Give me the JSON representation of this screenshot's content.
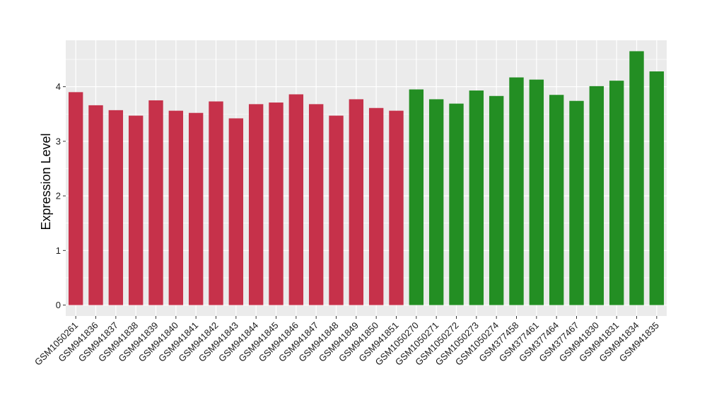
{
  "chart_data": {
    "type": "bar",
    "title": "",
    "xlabel": "",
    "ylabel": "Expression Level",
    "ylim": [
      -0.2,
      4.85
    ],
    "yticks": [
      0,
      1,
      2,
      3,
      4
    ],
    "grid": true,
    "legend": "none",
    "colors": {
      "group_a": "#C6314A",
      "group_b": "#238E23",
      "panel": "#EBEBEB",
      "grid": "#FFFFFF"
    },
    "categories": [
      "GSM1050261",
      "GSM941836",
      "GSM941837",
      "GSM941838",
      "GSM941839",
      "GSM941840",
      "GSM941841",
      "GSM941842",
      "GSM941843",
      "GSM941844",
      "GSM941845",
      "GSM941846",
      "GSM941847",
      "GSM941848",
      "GSM941849",
      "GSM941850",
      "GSM941851",
      "GSM1050270",
      "GSM1050271",
      "GSM1050272",
      "GSM1050273",
      "GSM1050274",
      "GSM377458",
      "GSM377461",
      "GSM377464",
      "GSM377467",
      "GSM941830",
      "GSM941831",
      "GSM941834",
      "GSM941835"
    ],
    "values": [
      3.9,
      3.66,
      3.57,
      3.47,
      3.75,
      3.56,
      3.52,
      3.73,
      3.42,
      3.68,
      3.71,
      3.86,
      3.68,
      3.47,
      3.77,
      3.61,
      3.56,
      3.95,
      3.77,
      3.69,
      3.93,
      3.83,
      4.17,
      4.13,
      3.85,
      3.74,
      4.01,
      4.11,
      4.65,
      4.28
    ],
    "groups": [
      "group_a",
      "group_a",
      "group_a",
      "group_a",
      "group_a",
      "group_a",
      "group_a",
      "group_a",
      "group_a",
      "group_a",
      "group_a",
      "group_a",
      "group_a",
      "group_a",
      "group_a",
      "group_a",
      "group_a",
      "group_b",
      "group_b",
      "group_b",
      "group_b",
      "group_b",
      "group_b",
      "group_b",
      "group_b",
      "group_b",
      "group_b",
      "group_b",
      "group_b",
      "group_b"
    ]
  }
}
